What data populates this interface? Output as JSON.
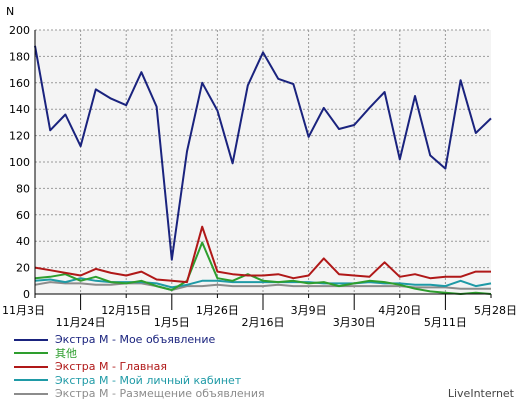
{
  "chart_data": {
    "type": "line",
    "ylabel": "N",
    "ylim": [
      0,
      200
    ],
    "yticks": [
      0,
      20,
      40,
      60,
      80,
      100,
      120,
      140,
      160,
      180,
      200
    ],
    "grid": true,
    "x_tick_labels": [
      {
        "row": 1,
        "label": "11月3日",
        "index": 0
      },
      {
        "row": 2,
        "label": "11月24日",
        "index": 3
      },
      {
        "row": 1,
        "label": "12月15日",
        "index": 6
      },
      {
        "row": 2,
        "label": "1月5日",
        "index": 9
      },
      {
        "row": 1,
        "label": "1月26日",
        "index": 12
      },
      {
        "row": 2,
        "label": "2月16日",
        "index": 15
      },
      {
        "row": 1,
        "label": "3月9日",
        "index": 18
      },
      {
        "row": 2,
        "label": "3月30日",
        "index": 21
      },
      {
        "row": 1,
        "label": "4月20日",
        "index": 24
      },
      {
        "row": 2,
        "label": "5月11日",
        "index": 27
      },
      {
        "row": 1,
        "label": "5月28日",
        "index": 30
      }
    ],
    "series": [
      {
        "name": "Экстра М - Мое объявление",
        "color": "#1a237e",
        "values": [
          188,
          124,
          136,
          112,
          155,
          148,
          143,
          168,
          142,
          26,
          108,
          160,
          139,
          99,
          158,
          183,
          163,
          159,
          119,
          141,
          125,
          128,
          141,
          153,
          102,
          150,
          105,
          95,
          162,
          122,
          133
        ]
      },
      {
        "name": "其他",
        "color": "#2e9e2e",
        "values": [
          12,
          13,
          15,
          10,
          13,
          9,
          8,
          10,
          6,
          3,
          10,
          39,
          12,
          10,
          15,
          10,
          9,
          10,
          8,
          9,
          6,
          8,
          10,
          9,
          7,
          4,
          2,
          1,
          0,
          1,
          0
        ]
      },
      {
        "name": "Экстра М - Главная",
        "color": "#b01818",
        "values": [
          20,
          18,
          16,
          14,
          19,
          16,
          14,
          17,
          11,
          10,
          9,
          51,
          17,
          15,
          14,
          14,
          15,
          12,
          14,
          27,
          15,
          14,
          13,
          24,
          13,
          15,
          12,
          13,
          13,
          17,
          17
        ]
      },
      {
        "name": "Экстра М - Мой личный кабинет",
        "color": "#1f9aa6",
        "values": [
          10,
          11,
          9,
          12,
          10,
          9,
          9,
          9,
          8,
          5,
          7,
          10,
          10,
          9,
          9,
          9,
          9,
          9,
          9,
          8,
          8,
          8,
          9,
          8,
          8,
          7,
          7,
          6,
          10,
          6,
          8
        ]
      },
      {
        "name": "Экстра М - Размещение объявления",
        "color": "#8c8c8c",
        "values": [
          7,
          9,
          8,
          8,
          7,
          7,
          8,
          8,
          6,
          3,
          6,
          6,
          7,
          6,
          6,
          6,
          7,
          6,
          6,
          6,
          6,
          6,
          6,
          6,
          6,
          5,
          5,
          5,
          4,
          4,
          4
        ]
      }
    ]
  },
  "brand": "LiveInternet"
}
